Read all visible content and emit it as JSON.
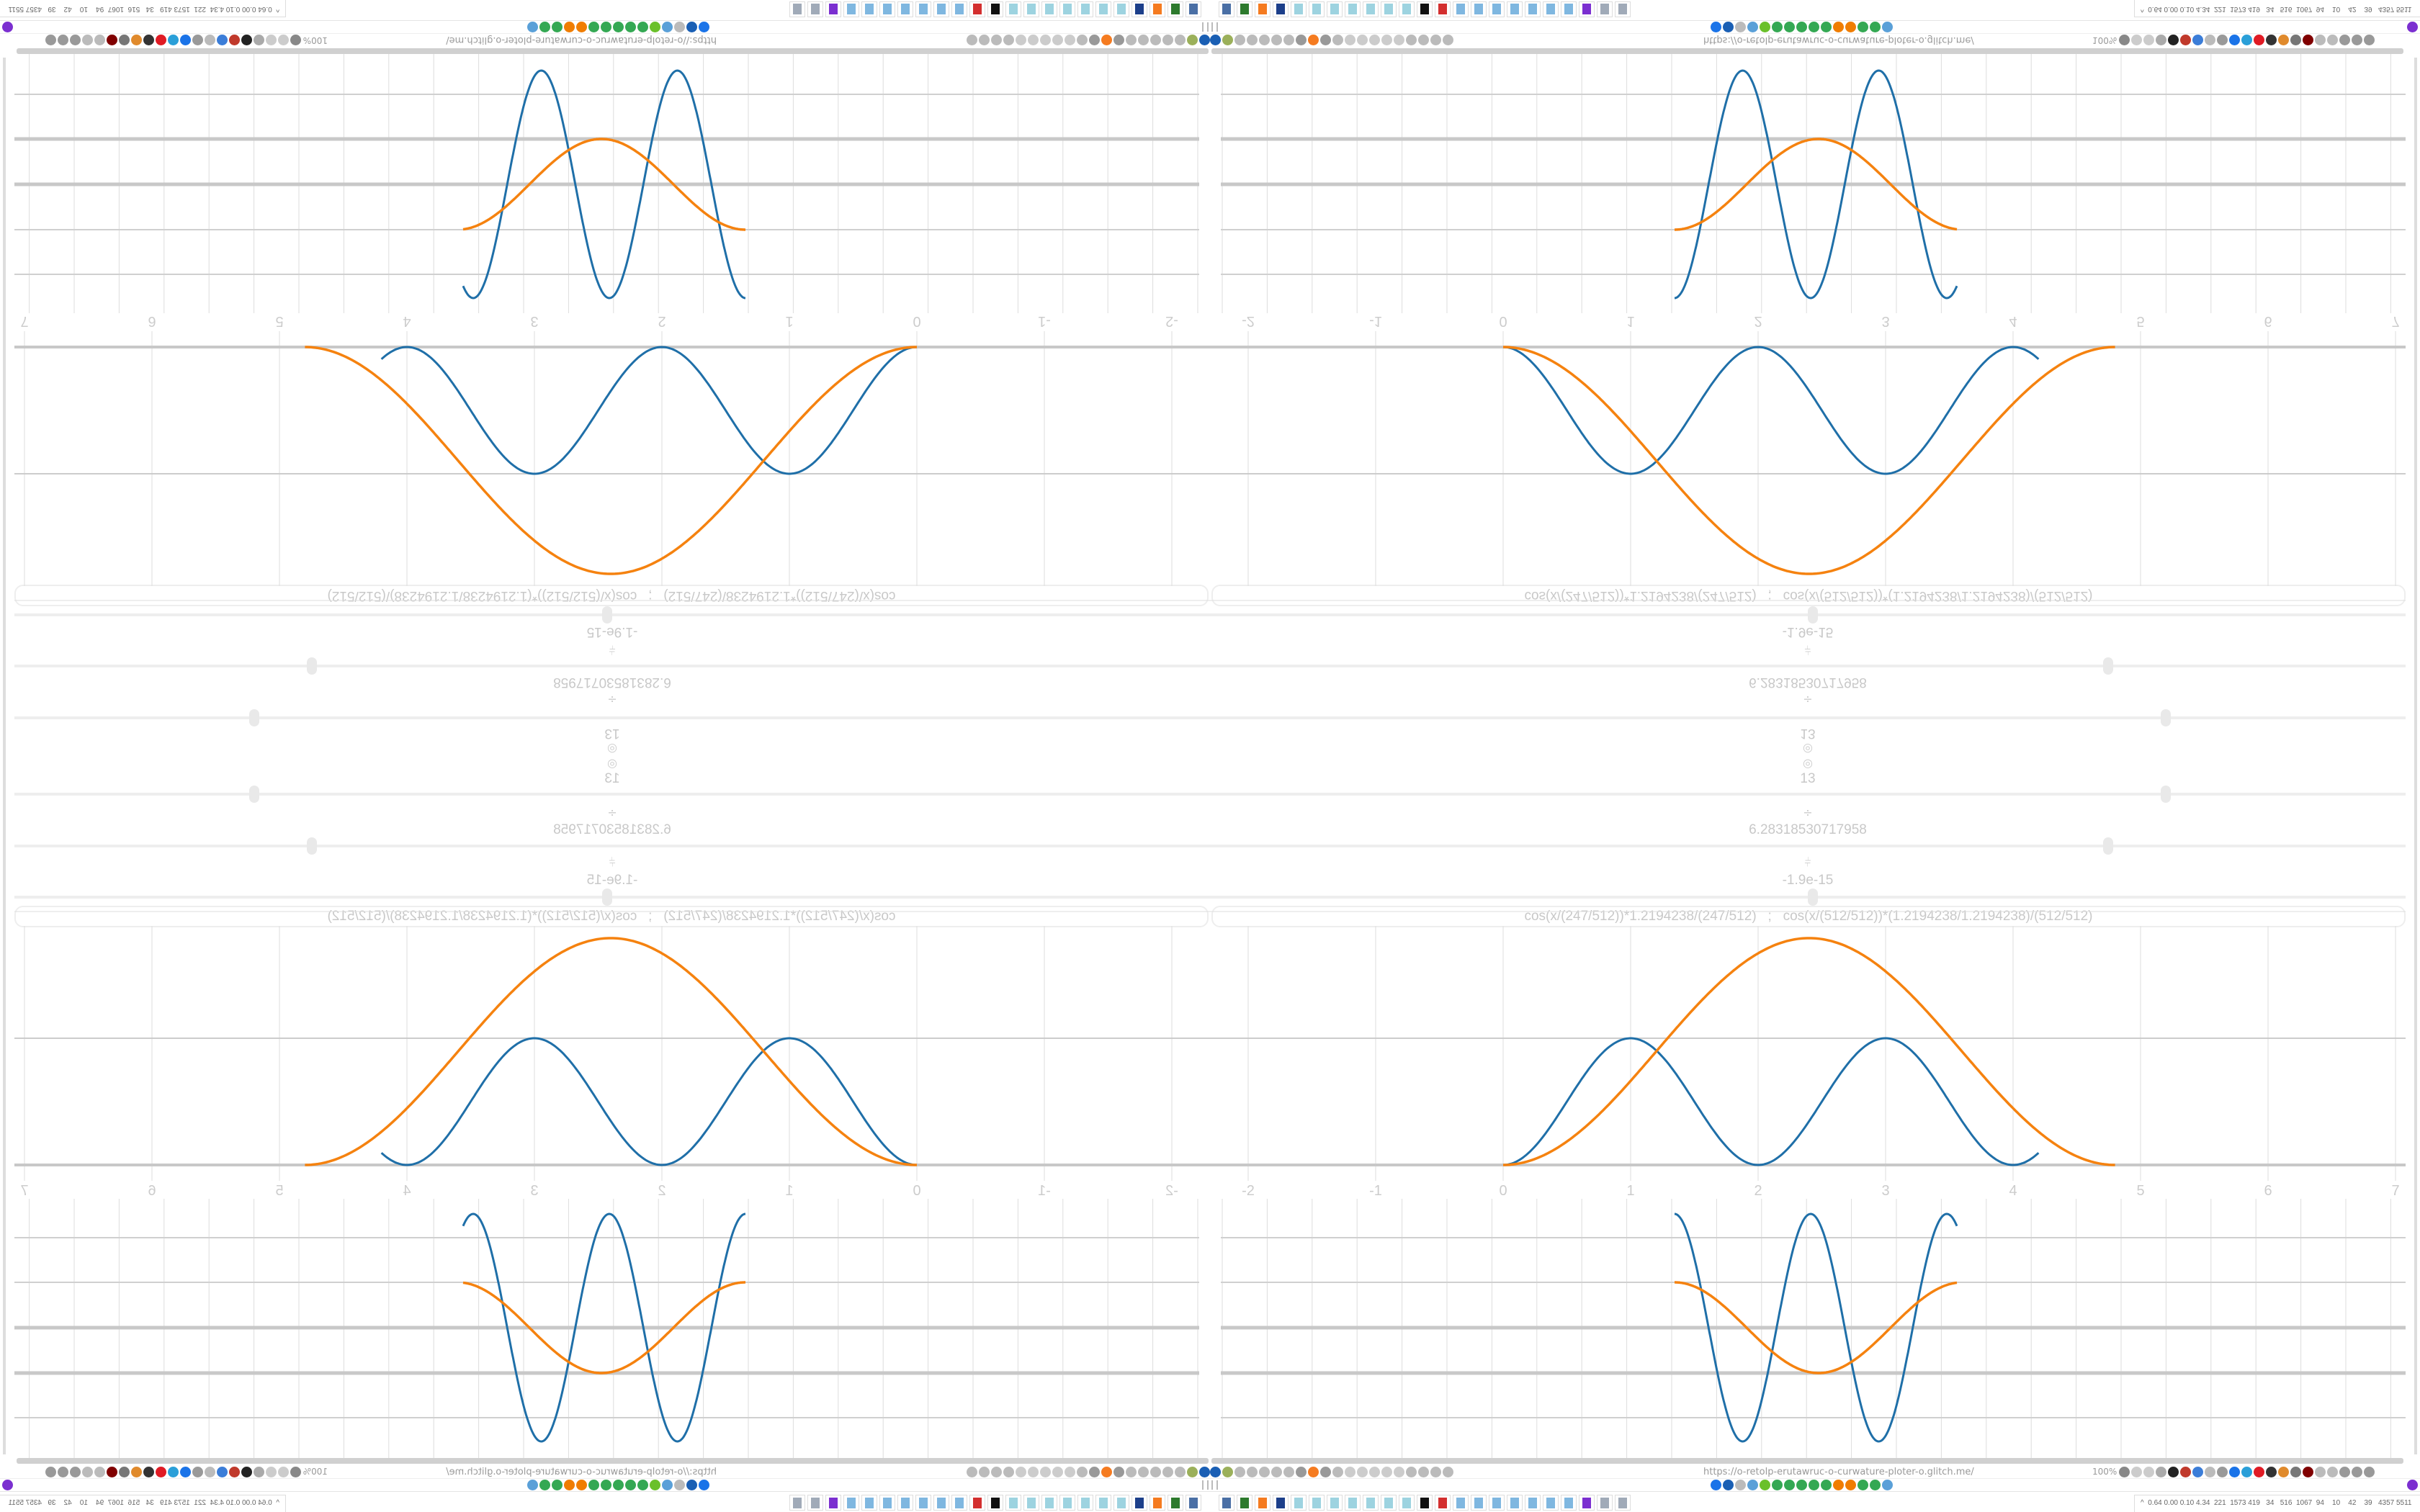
{
  "controls": [
    {
      "icon": "target-icon",
      "glyph": "◎",
      "value": "13",
      "slider_level": 0.79
    },
    {
      "icon": "divide-icon",
      "glyph": "÷",
      "value": "6.28318530717958",
      "slider_level": 0.742
    },
    {
      "icon": "phase-icon",
      "glyph": "⫩",
      "value": "-1.9e-15",
      "slider_level": 0.498
    }
  ],
  "formula": "cos(x/(247/512))*1.2194238/(247/512)   ;   cos(x/(512/512))*(1.2194238/1.2194238)/(512/512)",
  "graph": {
    "x_ticks": [
      "-2",
      "-1",
      "0",
      "1",
      "2",
      "3",
      "4",
      "5",
      "6",
      "7"
    ],
    "series_colors": {
      "blue": "#1f6fa8",
      "orange": "#f5820f"
    }
  },
  "browser": {
    "url": "https://o-retolp-erutawruc-o-curwature-ploter-o.glitch.me/",
    "zoom": "100%",
    "left_icons": [
      "y-icon",
      "olive-icon",
      "globe-icon",
      "globe-icon",
      "headphones-icon",
      "headphones-icon",
      "globe-icon",
      "wrench-icon",
      "firefox-icon",
      "gear-icon",
      "globe-icon",
      "dot-icon",
      "dot-icon",
      "dot-icon",
      "dot-icon",
      "dot-icon",
      "folder-icon",
      "back-icon",
      "shield-icon",
      "lock-icon"
    ],
    "right_icons": [
      "translate-icon",
      "star-icon",
      "forward-icon",
      "reload-icon",
      "download-icon",
      "pen-icon",
      "translate-blue-icon",
      "mouse-icon",
      "gear-icon",
      "plus-icon",
      "pocket-icon",
      "record-icon",
      "trash-icon",
      "share-icon",
      "archive-icon",
      "ublock-icon",
      "shield-icon",
      "globe-icon",
      "puzzle-icon",
      "wrench-icon",
      "settings-icon"
    ]
  },
  "bookmarks": {
    "icons": [
      "mail-icon",
      "drop-icon",
      "mute-icon",
      "snowflake-icon",
      "compass-icon",
      "google-icon",
      "google-icon",
      "google-icon",
      "google-icon",
      "google-icon",
      "gear-orange-icon",
      "gear-orange-icon",
      "google-icon",
      "google-icon",
      "snowflake-icon"
    ]
  },
  "taskbar": {
    "apps": [
      "monitor-icon",
      "terminal-icon",
      "firefox-icon",
      "floppy-icon",
      "notepad-icon",
      "notepad-icon",
      "notepad-icon",
      "notepad-icon",
      "notepad-icon",
      "notepad-icon",
      "notepad-icon",
      "inkscape-icon",
      "lifebuoy-icon",
      "calculator-icon",
      "calculator-icon",
      "calculator-icon",
      "calculator-icon",
      "calculator-icon",
      "calculator-icon",
      "calculator-icon",
      "tor-icon",
      "scroll-icon",
      "scroll-icon"
    ],
    "stats": "^  0.64 0.00 0.10 4.34  221  1573 419   34   516  1067  94    10    42    39   4357 5511"
  }
}
